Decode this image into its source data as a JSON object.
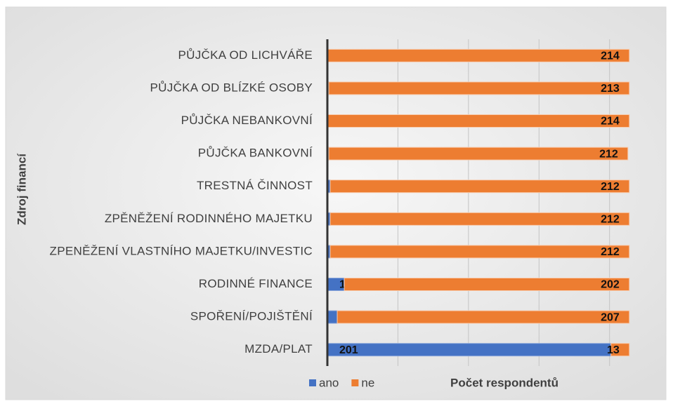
{
  "chart_data": {
    "type": "stacked_bar_horizontal",
    "y_axis_title": "Zdroj financí",
    "x_axis_title": "Počet respondentů",
    "categories": [
      "PŮJČKA OD LICHVÁŘE",
      "PŮJČKA OD BLÍZKÉ OSOBY",
      "PŮJČKA NEBANKOVNÍ",
      "PŮJČKA BANKOVNÍ",
      "TRESTNÁ ČINNOST",
      "ZPĚNĚŽENÍ RODINNÉHO MAJETKU",
      "ZPENĚŽENÍ VLASTNÍHO MAJETKU/INVESTIC",
      "RODINNÉ FINANCE",
      "SPOŘENÍ/POJIŠTĚNÍ",
      "MZDA/PLAT"
    ],
    "series": [
      {
        "name": "ano",
        "color": "#4472c4",
        "values": [
          0,
          1,
          0,
          1,
          2,
          2,
          2,
          12,
          7,
          201
        ]
      },
      {
        "name": "ne",
        "color": "#ed7d31",
        "values": [
          214,
          213,
          214,
          212,
          212,
          212,
          212,
          202,
          207,
          13
        ]
      }
    ],
    "xlim": [
      0,
      236
    ],
    "xticks": [
      50,
      100,
      150,
      200
    ],
    "grid": true,
    "legend": "bottom"
  }
}
